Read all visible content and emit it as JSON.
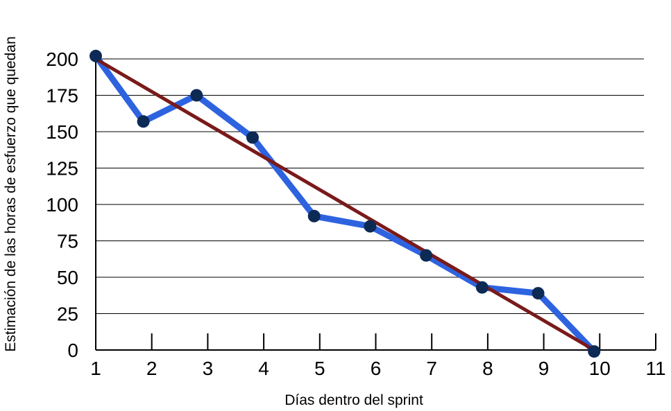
{
  "chart_data": {
    "type": "line",
    "xlabel": "Días dentro del sprint",
    "ylabel": "Estimación de las horas de esfuerzo que quedan",
    "xlim": [
      1,
      11
    ],
    "ylim": [
      0,
      200
    ],
    "x_ticks": [
      1,
      2,
      3,
      4,
      5,
      6,
      7,
      8,
      9,
      10,
      11
    ],
    "y_ticks": [
      0,
      25,
      50,
      75,
      100,
      125,
      150,
      175,
      200
    ],
    "grid": "horizontal",
    "series": [
      {
        "type": "line",
        "color": "#2e63e0",
        "markers": true,
        "marker_color": "#0d2a55",
        "points": [
          [
            1,
            202
          ],
          [
            1.85,
            157
          ],
          [
            2.8,
            175
          ],
          [
            3.8,
            146
          ],
          [
            4.9,
            92
          ],
          [
            5.9,
            85
          ],
          [
            6.9,
            65
          ],
          [
            7.9,
            43
          ],
          [
            8.9,
            39
          ],
          [
            9.9,
            -1
          ]
        ]
      },
      {
        "type": "line",
        "color": "#7a1a1a",
        "markers": false,
        "points": [
          [
            1,
            200
          ],
          [
            9.9,
            0
          ]
        ]
      }
    ]
  }
}
